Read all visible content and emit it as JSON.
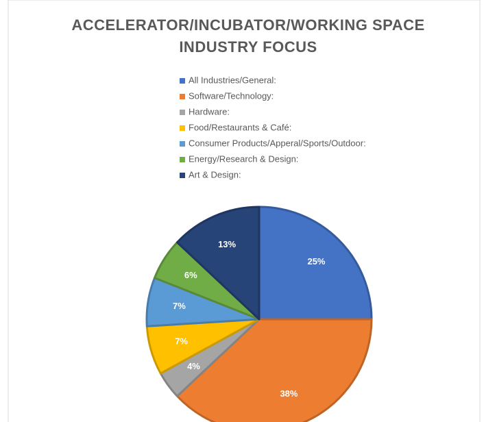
{
  "chart_data": {
    "type": "pie",
    "title": [
      "ACCELERATOR/INCUBATOR/WORKING SPACE",
      "INDUSTRY FOCUS"
    ],
    "categories": [
      "All Industries/General:",
      "Software/Technology:",
      "Hardware:",
      "Food/Restaurants & Café:",
      "Consumer Products/Apperal/Sports/Outdoor:",
      "Energy/Research & Design:",
      "Art & Design:"
    ],
    "values": [
      25,
      38,
      4,
      7,
      7,
      6,
      13
    ],
    "value_labels": [
      "25%",
      "38%",
      "4%",
      "7%",
      "7%",
      "6%",
      "13%"
    ],
    "colors": [
      "#4472c4",
      "#ed7d31",
      "#a5a5a5",
      "#ffc000",
      "#5b9bd5",
      "#70ad47",
      "#264478"
    ],
    "legend": "top"
  }
}
